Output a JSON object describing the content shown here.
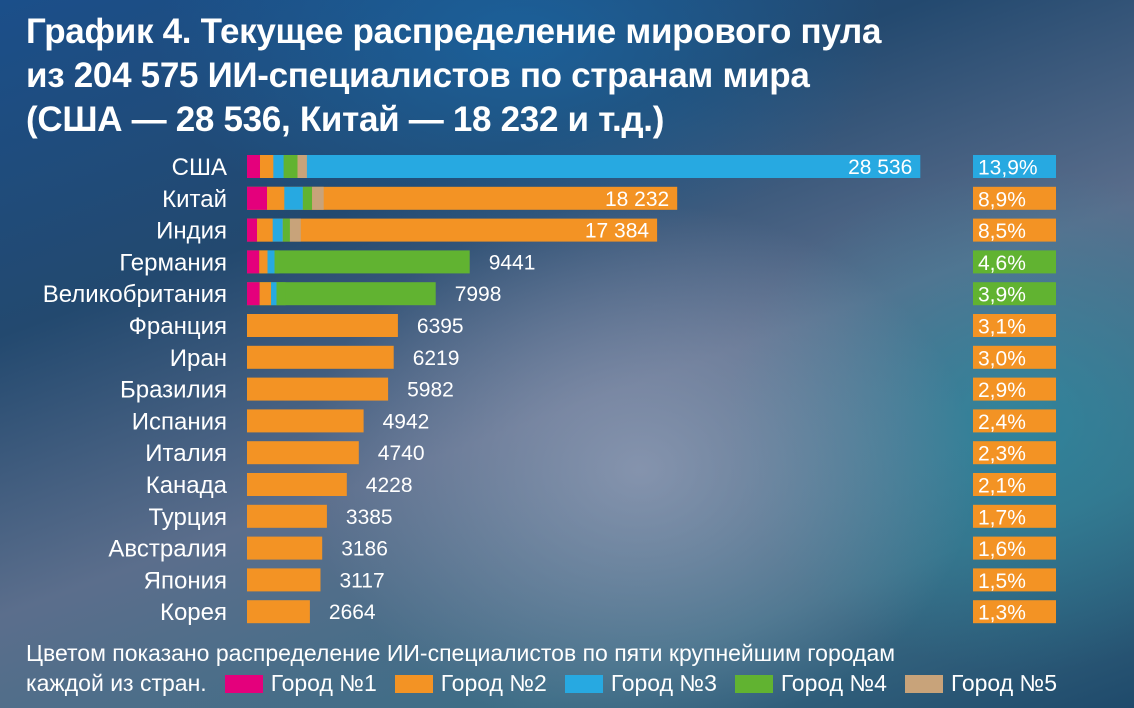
{
  "title_lines": [
    "График 4. Текущее распределение мирового пула",
    "из 204 575 ИИ-специалистов по странам мира",
    "(США — 28 536, Китай — 18 232 и т.д.)"
  ],
  "chart_data": {
    "type": "bar",
    "orientation": "horizontal",
    "stacked_segments": "first five cities per country",
    "categories": [
      "США",
      "Китай",
      "Индия",
      "Германия",
      "Великобритания",
      "Франция",
      "Иран",
      "Бразилия",
      "Испания",
      "Италия",
      "Канада",
      "Турция",
      "Австралия",
      "Япония",
      "Корея"
    ],
    "values": [
      28536,
      18232,
      17384,
      9441,
      7998,
      6395,
      6219,
      5982,
      4942,
      4740,
      4228,
      3385,
      3186,
      3117,
      2664
    ],
    "value_labels": [
      "28 536",
      "18 232",
      "17 384",
      "9441",
      "7998",
      "6395",
      "6219",
      "5982",
      "4942",
      "4740",
      "4228",
      "3385",
      "3186",
      "3117",
      "2664"
    ],
    "shares": [
      "13,9%",
      "8,9%",
      "8,5%",
      "4,6%",
      "3,9%",
      "3,1%",
      "3,0%",
      "2,9%",
      "2,4%",
      "2,3%",
      "2,1%",
      "1,7%",
      "1,6%",
      "1,5%",
      "1,3%"
    ],
    "main_color_series": [
      3,
      2,
      2,
      4,
      4,
      2,
      2,
      2,
      2,
      2,
      2,
      2,
      2,
      2,
      2
    ],
    "city_segments": [
      [
        550,
        570,
        430,
        590,
        400
      ],
      [
        850,
        730,
        790,
        390,
        490
      ],
      [
        430,
        660,
        430,
        300,
        460
      ],
      [
        520,
        350,
        300,
        200,
        0
      ],
      [
        540,
        480,
        230,
        390,
        0
      ],
      [
        0,
        0,
        0,
        0,
        0
      ],
      [
        0,
        0,
        0,
        0,
        0
      ],
      [
        0,
        0,
        0,
        0,
        0
      ],
      [
        0,
        0,
        0,
        0,
        0
      ],
      [
        0,
        0,
        0,
        0,
        0
      ],
      [
        0,
        0,
        0,
        0,
        0
      ],
      [
        0,
        0,
        0,
        0,
        0
      ],
      [
        0,
        0,
        0,
        0,
        0
      ],
      [
        0,
        0,
        0,
        0,
        0
      ],
      [
        0,
        0,
        0,
        0,
        0
      ]
    ],
    "series": [
      {
        "name": "Город №1",
        "color": "#e4007c"
      },
      {
        "name": "Город №2",
        "color": "#f39324"
      },
      {
        "name": "Город №3",
        "color": "#27a9e1"
      },
      {
        "name": "Город №4",
        "color": "#61b331"
      },
      {
        "name": "Город №5",
        "color": "#c8a37a"
      }
    ],
    "xlim": [
      0,
      29500
    ],
    "grid": false
  },
  "legend": {
    "note_line1": "Цветом показано распределение ИИ-специалистов по пяти крупнейшим городам",
    "note_line2_prefix": "каждой из стран."
  }
}
